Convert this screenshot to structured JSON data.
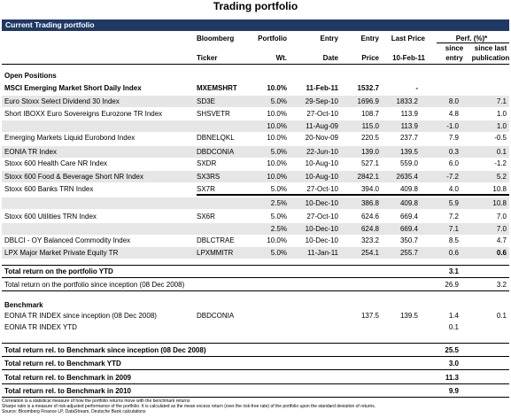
{
  "title": "Trading portfolio",
  "section_current": "Current Trading portfolio",
  "headers": {
    "bloomberg": "Bloomberg",
    "ticker": "Ticker",
    "portfolio": "Portfolio",
    "wt": "Wt.",
    "entry": "Entry",
    "date": "Date",
    "entry2": "Entry",
    "price": "Price",
    "last_price": "Last Price",
    "last_date": "10-Feb-11",
    "perf": "Perf. (%)*",
    "since_entry_1": "since",
    "since_entry_2": "entry",
    "since_pub_1": "since last",
    "since_pub_2": "publication"
  },
  "open_positions_label": "Open Positions",
  "rows": [
    {
      "name": "MSCI Emerging Market Short Daily Index",
      "ticker": "MXEMSHRT",
      "wt": "10.0%",
      "date": "11-Feb-11",
      "entry": "1532.7",
      "last": "-",
      "since_entry": "",
      "since_pub": "",
      "bold": true
    },
    {
      "name": "Euro Stoxx Select Dividend 30 Index",
      "ticker": "SD3E",
      "wt": "5.0%",
      "date": "29-Sep-10",
      "entry": "1696.9",
      "last": "1833.2",
      "since_entry": "8.0",
      "since_pub": "7.1"
    },
    {
      "name": "Short IBOXX Euro Sovereigns Eurozone TR Index",
      "ticker": "SHSVETR",
      "wt": "10.0%",
      "date": "27-Oct-10",
      "entry": "108.7",
      "last": "113.9",
      "since_entry": "4.8",
      "since_pub": "1.0"
    },
    {
      "name": "",
      "ticker": "",
      "wt": "10.0%",
      "date": "11-Aug-09",
      "entry": "115.0",
      "last": "113.9",
      "since_entry": "-1.0",
      "since_pub": "1.0"
    },
    {
      "name": "Emerging Markets Liquid Eurobond Index",
      "ticker": "DBNELQKL",
      "wt": "10.0%",
      "date": "20-Nov-09",
      "entry": "220.5",
      "last": "237.7",
      "since_entry": "7.9",
      "since_pub": "-0.5"
    },
    {
      "name": "EONIA TR Index",
      "ticker": "DBDCONIA",
      "wt": "5.0%",
      "date": "22-Jun-10",
      "entry": "139.0",
      "last": "139.5",
      "since_entry": "0.3",
      "since_pub": "0.1"
    },
    {
      "name": "Stoxx 600 Health Care NR Index",
      "ticker": "SXDR",
      "wt": "10.0%",
      "date": "10-Aug-10",
      "entry": "527.1",
      "last": "559.0",
      "since_entry": "6.0",
      "since_pub": "-1.2"
    },
    {
      "name": "Stoxx 600 Food & Beverage Short NR Index",
      "ticker": "SX3RS",
      "wt": "10.0%",
      "date": "10-Aug-10",
      "entry": "2842.1",
      "last": "2635.4",
      "since_entry": "-7.2",
      "since_pub": "5.2"
    },
    {
      "name": "Stoxx 600 Banks TRN Index",
      "ticker": "SX7R",
      "wt": "5.0%",
      "date": "27-Oct-10",
      "entry": "394.0",
      "last": "409.8",
      "since_entry": "4.0",
      "since_pub": "10.8"
    },
    {
      "name": "",
      "ticker": "",
      "wt": "2.5%",
      "date": "10-Dec-10",
      "entry": "386.8",
      "last": "409.8",
      "since_entry": "5.9",
      "since_pub": "10.8"
    },
    {
      "name": "Stoxx 600 Utilities TRN Index",
      "ticker": "SX6R",
      "wt": "5.0%",
      "date": "27-Oct-10",
      "entry": "624.6",
      "last": "669.4",
      "since_entry": "7.2",
      "since_pub": "7.0"
    },
    {
      "name": "",
      "ticker": "",
      "wt": "2.5%",
      "date": "10-Dec-10",
      "entry": "624.8",
      "last": "669.4",
      "since_entry": "7.1",
      "since_pub": "7.0"
    },
    {
      "name": "DBLCI - OY Balanced Commodity Index",
      "ticker": "DBLCTRAE",
      "wt": "10.0%",
      "date": "10-Dec-10",
      "entry": "323.2",
      "last": "350.7",
      "since_entry": "8.5",
      "since_pub": "4.7"
    },
    {
      "name": "LPX Major Market Private Equity TR",
      "ticker": "LPXMMITR",
      "wt": "5.0%",
      "date": "11-Jan-11",
      "entry": "254.1",
      "last": "255.7",
      "since_entry": "0.6",
      "since_pub": "0.6"
    }
  ],
  "totals": {
    "ytd_label": "Total return on the portfolio YTD",
    "ytd_value": "3.1",
    "inception_label": "Total return on the portfolio since inception (08 Dec 2008)",
    "inception_value": "26.9",
    "inception_pub": "3.2"
  },
  "benchmark": {
    "label": "Benchmark",
    "row1_name": "EONIA TR INDEX since inception (08 Dec 2008)",
    "row1_ticker": "DBDCONIA",
    "row1_entry": "137.5",
    "row1_last": "139.5",
    "row1_since_entry": "1.4",
    "row1_since_pub": "0.1",
    "row2_name": "EONIA TR INDEX YTD",
    "row2_since_entry": "0.1"
  },
  "rel": [
    {
      "label": "Total return rel. to Benchmark since inception (08 Dec 2008)",
      "value": "25.5"
    },
    {
      "label": "Total return rel. to Benchmark YTD",
      "value": "3.0"
    },
    {
      "label": "Total return rel. to Benchmark in 2009",
      "value": "11.3"
    },
    {
      "label": "Total return rel. to Benchmark in 2010",
      "value": "9.9"
    }
  ],
  "footnotes": [
    "Correlation is a statistical measure of how the portfolio returns move with the benchmark returns",
    "Sharpe ratio is a measure of risk-adjusted performance of the portfolio. It is calculated as the mean excess return (over the risk-free rate) of the portfolio upon the standard deviation of returns.",
    "Source: Bloomberg Finance LP, DataStream, Deutsche Bank calculations"
  ]
}
